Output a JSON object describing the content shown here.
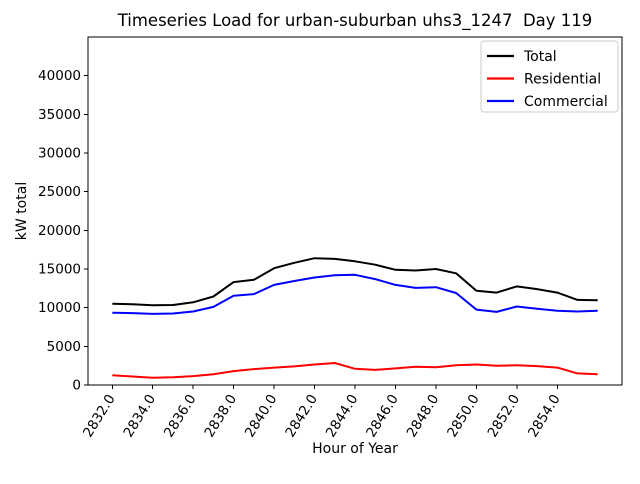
{
  "title": "Timeseries Load for urban-suburban uhs3_1247  Day 119",
  "chart_data": {
    "type": "line",
    "title": "Timeseries Load for urban-suburban uhs3_1247  Day 119",
    "xlabel": "Hour of Year",
    "ylabel": "kW total",
    "legend_position": "upper right",
    "grid": false,
    "background": "#ffffff",
    "xlim": [
      2830.8,
      2857.2
    ],
    "ylim": [
      0,
      45000
    ],
    "x_ticks": [
      2832,
      2834,
      2836,
      2838,
      2840,
      2842,
      2844,
      2846,
      2848,
      2850,
      2852,
      2854
    ],
    "x_tick_labels": [
      "2832.0",
      "2834.0",
      "2836.0",
      "2838.0",
      "2840.0",
      "2842.0",
      "2844.0",
      "2846.0",
      "2848.0",
      "2850.0",
      "2852.0",
      "2854.0"
    ],
    "y_ticks": [
      0,
      5000,
      10000,
      15000,
      20000,
      25000,
      30000,
      35000,
      40000
    ],
    "y_tick_labels": [
      "0",
      "5000",
      "10000",
      "15000",
      "20000",
      "25000",
      "30000",
      "35000",
      "40000"
    ],
    "x": [
      2832,
      2833,
      2834,
      2835,
      2836,
      2837,
      2838,
      2839,
      2840,
      2841,
      2842,
      2843,
      2844,
      2845,
      2846,
      2847,
      2848,
      2849,
      2850,
      2851,
      2852,
      2853,
      2854,
      2855,
      2856
    ],
    "series": [
      {
        "name": "Total",
        "color": "#000000",
        "values": [
          10500,
          10450,
          10300,
          10350,
          10700,
          11450,
          13300,
          13600,
          15100,
          15800,
          16400,
          16300,
          16000,
          15550,
          14900,
          14800,
          15000,
          14450,
          12200,
          11950,
          12750,
          12400,
          11950,
          11000,
          10950
        ]
      },
      {
        "name": "Residential",
        "color": "#ff0000",
        "values": [
          1250,
          1100,
          950,
          1000,
          1150,
          1400,
          1800,
          2050,
          2250,
          2400,
          2650,
          2850,
          2100,
          1950,
          2150,
          2350,
          2300,
          2550,
          2650,
          2500,
          2550,
          2450,
          2250,
          1500,
          1400
        ]
      },
      {
        "name": "Commercial",
        "color": "#0000ff",
        "values": [
          9350,
          9300,
          9200,
          9250,
          9500,
          10100,
          11550,
          11750,
          12950,
          13450,
          13900,
          14200,
          14250,
          13700,
          12950,
          12550,
          12650,
          11900,
          9750,
          9450,
          10150,
          9850,
          9600,
          9500,
          9600
        ]
      }
    ]
  }
}
